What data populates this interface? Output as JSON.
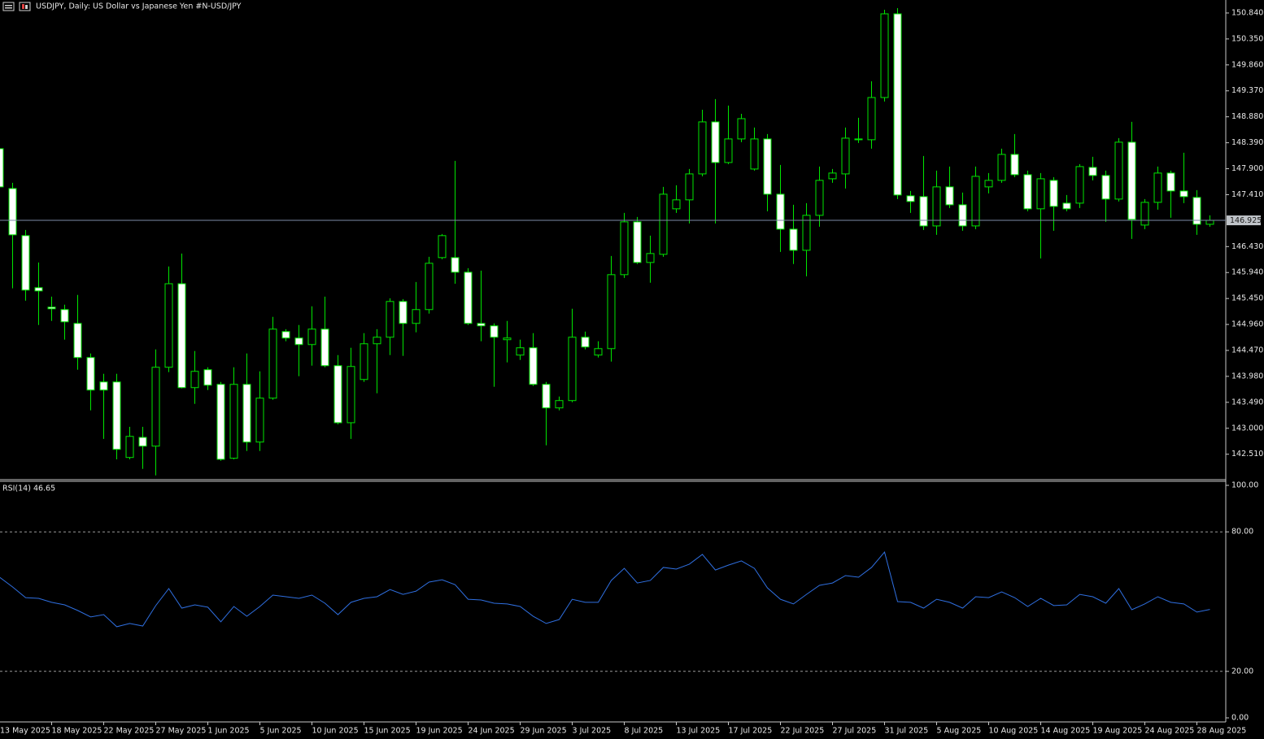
{
  "chart_data": [
    {
      "type": "candlestick",
      "title": "USDJPY, Daily:  US Dollar vs  Japanese Yen #N-USD/JPY",
      "up_color": "#00e600",
      "down_color": "#ffffff",
      "wick_color": "#00e600",
      "categories": [
        "13 May 2025",
        null,
        null,
        null,
        "18 May 2025",
        null,
        null,
        null,
        "22 May 2025",
        null,
        null,
        null,
        "27 May 2025",
        null,
        null,
        null,
        "1 Jun 2025",
        null,
        null,
        null,
        "5 Jun 2025",
        null,
        null,
        null,
        "10 Jun 2025",
        null,
        null,
        null,
        "15 Jun 2025",
        null,
        null,
        null,
        "19 Jun 2025",
        null,
        null,
        null,
        "24 Jun 2025",
        null,
        null,
        null,
        "29 Jun 2025",
        null,
        null,
        null,
        "3 Jul 2025",
        null,
        null,
        null,
        "8 Jul 2025",
        null,
        null,
        null,
        "13 Jul 2025",
        null,
        null,
        null,
        "17 Jul 2025",
        null,
        null,
        null,
        "22 Jul 2025",
        null,
        null,
        null,
        "27 Jul 2025",
        null,
        null,
        null,
        "31 Jul 2025",
        null,
        null,
        null,
        "5 Aug 2025",
        null,
        null,
        null,
        "10 Aug 2025",
        null,
        null,
        null,
        "14 Aug 2025",
        null,
        null,
        null,
        "19 Aug 2025",
        null,
        null,
        null,
        "24 Aug 2025",
        null,
        null,
        null,
        "28 Aug 2025",
        null
      ],
      "open": [
        148.278,
        147.526,
        146.637,
        145.655,
        145.287,
        145.241,
        144.98,
        144.336,
        143.875,
        143.875,
        142.449,
        142.828,
        142.663,
        144.152,
        145.729,
        143.768,
        144.106,
        143.829,
        142.434,
        143.829,
        142.74,
        143.569,
        144.826,
        144.704,
        144.581,
        144.872,
        144.182,
        143.105,
        143.921,
        144.596,
        144.719,
        145.394,
        144.98,
        145.241,
        146.222,
        146.222,
        145.946,
        144.98,
        144.934,
        144.673,
        144.382,
        144.52,
        143.829,
        143.385,
        143.523,
        144.719,
        144.382,
        144.504,
        145.9,
        146.897,
        146.13,
        146.284,
        147.143,
        147.312,
        147.802,
        148.784,
        148.017,
        148.462,
        147.894,
        148.462,
        147.419,
        146.759,
        146.36,
        147.02,
        147.71,
        147.802,
        148.447,
        148.447,
        149.244,
        150.824,
        147.388,
        147.373,
        146.82,
        147.557,
        147.219,
        146.82,
        147.557,
        147.68,
        148.17,
        147.787,
        147.143,
        147.68,
        147.25,
        147.25,
        147.925,
        147.772,
        147.327,
        148.401,
        146.836,
        147.265,
        147.818,
        147.48,
        147.358,
        146.851
      ],
      "high": [
        148.3,
        147.634,
        146.744,
        146.13,
        145.486,
        145.333,
        145.517,
        144.412,
        144.029,
        144.029,
        143.028,
        143.028,
        144.489,
        146.054,
        146.299,
        144.458,
        144.152,
        143.875,
        144.152,
        144.412,
        144.075,
        145.103,
        144.872,
        144.949,
        145.302,
        145.486,
        144.382,
        144.52,
        144.796,
        144.872,
        145.455,
        145.44,
        145.762,
        146.238,
        146.667,
        148.048,
        146.023,
        145.977,
        144.98,
        145.026,
        144.673,
        144.796,
        143.875,
        143.599,
        145.256,
        144.826,
        144.642,
        146.253,
        147.066,
        146.989,
        146.637,
        147.557,
        147.587,
        147.894,
        149.014,
        149.214,
        149.091,
        148.937,
        148.677,
        148.554,
        147.971,
        147.219,
        147.25,
        147.94,
        147.894,
        148.677,
        148.861,
        149.551,
        150.901,
        150.932,
        147.48,
        148.14,
        147.864,
        147.94,
        147.449,
        147.94,
        147.818,
        148.278,
        148.554,
        147.864,
        147.818,
        147.741,
        147.404,
        147.986,
        148.124,
        147.864,
        148.477,
        148.784,
        147.327,
        147.94,
        147.864,
        148.201,
        147.495,
        147.02
      ],
      "low": [
        147.48,
        145.643,
        145.409,
        144.949,
        145.026,
        144.673,
        144.106,
        143.339,
        142.799,
        142.414,
        142.414,
        142.234,
        142.111,
        144.06,
        143.753,
        143.461,
        143.722,
        142.387,
        142.414,
        142.571,
        142.571,
        143.538,
        144.642,
        143.983,
        144.182,
        144.152,
        143.074,
        142.799,
        143.875,
        143.661,
        144.382,
        144.366,
        144.811,
        145.164,
        146.192,
        145.729,
        144.949,
        144.642,
        143.783,
        144.244,
        144.29,
        143.799,
        142.678,
        143.339,
        143.492,
        144.489,
        144.336,
        144.259,
        145.839,
        146.1,
        145.747,
        146.238,
        147.066,
        146.867,
        147.756,
        146.867,
        147.986,
        148.401,
        147.864,
        147.097,
        146.33,
        146.1,
        145.869,
        146.805,
        147.634,
        147.526,
        148.385,
        148.278,
        149.168,
        147.327,
        147.066,
        146.744,
        146.652,
        147.158,
        146.729,
        146.759,
        147.434,
        147.634,
        147.741,
        147.097,
        146.207,
        146.729,
        147.097,
        147.158,
        147.68,
        146.897,
        147.281,
        146.575,
        146.759,
        147.127,
        146.974,
        147.25,
        146.652,
        146.805
      ],
      "close": [
        147.557,
        146.652,
        145.609,
        145.593,
        145.256,
        145.01,
        144.336,
        143.722,
        143.722,
        142.602,
        142.847,
        142.663,
        144.152,
        145.729,
        143.768,
        144.075,
        143.814,
        142.414,
        143.829,
        142.74,
        143.569,
        144.872,
        144.704,
        144.581,
        144.872,
        144.182,
        143.105,
        144.167,
        144.596,
        144.719,
        145.394,
        144.98,
        145.241,
        146.115,
        146.637,
        145.946,
        144.98,
        144.934,
        144.719,
        144.704,
        144.52,
        143.829,
        143.385,
        143.523,
        144.719,
        144.535,
        144.504,
        145.9,
        146.897,
        146.13,
        146.299,
        147.419,
        147.312,
        147.802,
        148.784,
        148.017,
        148.462,
        148.845,
        148.462,
        147.419,
        146.759,
        146.36,
        147.02,
        147.68,
        147.818,
        148.477,
        148.462,
        149.244,
        150.824,
        147.404,
        147.281,
        146.82,
        147.557,
        147.219,
        146.82,
        147.756,
        147.68,
        148.17,
        147.787,
        147.143,
        147.71,
        147.189,
        147.143,
        147.94,
        147.772,
        147.327,
        148.401,
        146.943,
        147.265,
        147.818,
        147.48,
        147.373,
        146.851,
        146.925
      ],
      "last_price": 146.925,
      "ylim": [
        142.03,
        151.085
      ],
      "yticks": [
        {
          "value": 150.84,
          "label": "150.840"
        },
        {
          "value": 150.35,
          "label": "150.350"
        },
        {
          "value": 149.86,
          "label": "149.860"
        },
        {
          "value": 149.37,
          "label": "149.370"
        },
        {
          "value": 148.88,
          "label": "148.880"
        },
        {
          "value": 148.39,
          "label": "148.390"
        },
        {
          "value": 147.9,
          "label": "147.900"
        },
        {
          "value": 147.41,
          "label": "147.410"
        },
        {
          "value": 146.43,
          "label": "146.430"
        },
        {
          "value": 145.94,
          "label": "145.940"
        },
        {
          "value": 145.45,
          "label": "145.450"
        },
        {
          "value": 144.96,
          "label": "144.960"
        },
        {
          "value": 144.47,
          "label": "144.470"
        },
        {
          "value": 143.98,
          "label": "143.980"
        },
        {
          "value": 143.49,
          "label": "143.490"
        },
        {
          "value": 143.0,
          "label": "143.000"
        },
        {
          "value": 142.51,
          "label": "142.510"
        }
      ]
    },
    {
      "type": "line",
      "title": "RSI(14) 46.65",
      "color": "#2f6fe0",
      "values": [
        60.5,
        56.3,
        51.7,
        51.4,
        49.7,
        48.6,
        46.2,
        43.4,
        44.4,
        39.2,
        40.6,
        39.5,
        48.3,
        55.6,
        47.2,
        48.6,
        47.6,
        41.3,
        47.9,
        43.7,
        47.9,
        52.8,
        52.1,
        51.4,
        52.8,
        49.3,
        44.4,
        49.7,
        51.4,
        52.1,
        55.2,
        53.1,
        54.5,
        58.4,
        59.4,
        57.3,
        51.0,
        50.7,
        49.3,
        49.0,
        47.9,
        43.7,
        40.6,
        42.3,
        51.0,
        49.7,
        49.7,
        59.1,
        64.3,
        58.0,
        59.1,
        64.7,
        64.0,
        66.1,
        70.3,
        63.6,
        65.7,
        67.5,
        64.3,
        55.9,
        51.0,
        49.0,
        53.1,
        57.0,
        58.0,
        61.2,
        60.5,
        64.7,
        71.3,
        50.0,
        49.7,
        47.2,
        51.0,
        49.7,
        47.2,
        52.1,
        51.7,
        54.2,
        51.7,
        47.9,
        51.4,
        48.3,
        48.6,
        53.1,
        52.1,
        49.3,
        55.6,
        46.5,
        49.0,
        52.1,
        49.7,
        49.0,
        45.5,
        46.65
      ],
      "levels": [
        80,
        20
      ],
      "ylim": [
        -1.75,
        101.75
      ],
      "yticks": [
        {
          "value": 100,
          "label": "100.00"
        },
        {
          "value": 80,
          "label": "80.00"
        },
        {
          "value": 20,
          "label": "20.00"
        },
        {
          "value": 0,
          "label": "0.00"
        }
      ]
    }
  ]
}
